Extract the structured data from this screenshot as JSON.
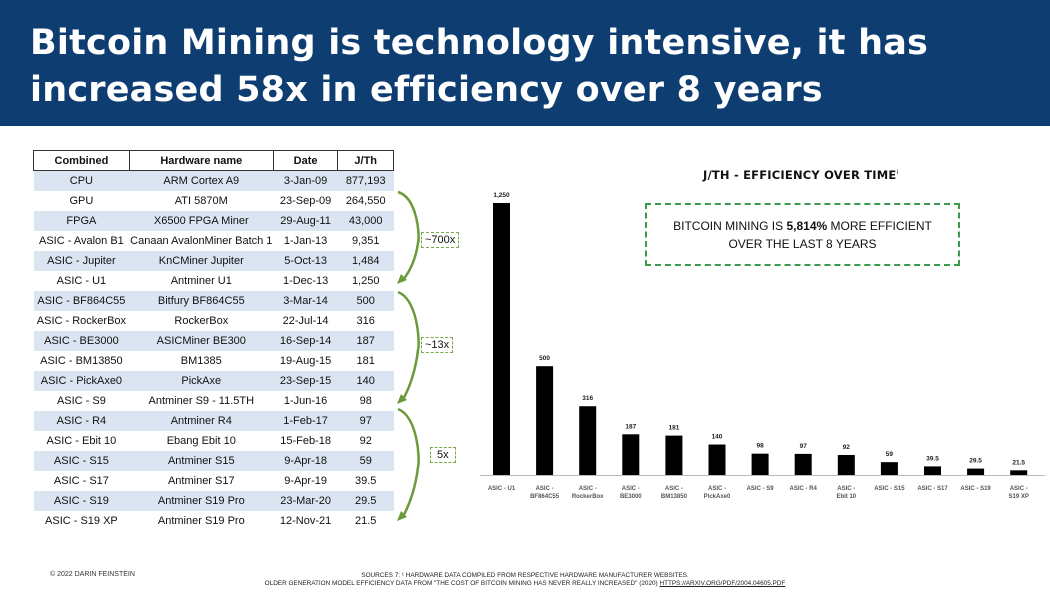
{
  "header": {
    "title_line1": "Bitcoin Mining is technology intensive, it has",
    "title_line2": "increased 58x in efficiency over 8 years"
  },
  "table": {
    "columns": [
      "Combined",
      "Hardware name",
      "Date",
      "J/Th"
    ],
    "rows": [
      [
        "CPU",
        "ARM Cortex A9",
        "3-Jan-09",
        "877,193"
      ],
      [
        "GPU",
        "ATI 5870M",
        "23-Sep-09",
        "264,550"
      ],
      [
        "FPGA",
        "X6500 FPGA Miner",
        "29-Aug-11",
        "43,000"
      ],
      [
        "ASIC - Avalon B1",
        "Canaan AvalonMiner Batch 1",
        "1-Jan-13",
        "9,351"
      ],
      [
        "ASIC - Jupiter",
        "KnCMiner Jupiter",
        "5-Oct-13",
        "1,484"
      ],
      [
        "ASIC - U1",
        "Antminer U1",
        "1-Dec-13",
        "1,250"
      ],
      [
        "ASIC - BF864C55",
        "Bitfury BF864C55",
        "3-Mar-14",
        "500"
      ],
      [
        "ASIC - RockerBox",
        "RockerBox",
        "22-Jul-14",
        "316"
      ],
      [
        "ASIC - BE3000",
        "ASICMiner BE300",
        "16-Sep-14",
        "187"
      ],
      [
        "ASIC - BM13850",
        "BM1385",
        "19-Aug-15",
        "181"
      ],
      [
        "ASIC - PickAxe0",
        "PickAxe",
        "23-Sep-15",
        "140"
      ],
      [
        "ASIC - S9",
        "Antminer S9 - 11.5TH",
        "1-Jun-16",
        "98"
      ],
      [
        "ASIC - R4",
        "Antminer R4",
        "1-Feb-17",
        "97"
      ],
      [
        "ASIC - Ebit 10",
        "Ebang Ebit 10",
        "15-Feb-18",
        "92"
      ],
      [
        "ASIC - S15",
        "Antminer S15",
        "9-Apr-18",
        "59"
      ],
      [
        "ASIC - S17",
        "Antminer S17",
        "9-Apr-19",
        "39.5"
      ],
      [
        "ASIC - S19",
        "Antminer S19 Pro",
        "23-Mar-20",
        "29.5"
      ],
      [
        "ASIC - S19 XP",
        "Antminer S19 Pro",
        "12-Nov-21",
        "21.5"
      ]
    ]
  },
  "brackets": [
    {
      "label": "~700x"
    },
    {
      "label": "~13x"
    },
    {
      "label": "5x"
    }
  ],
  "callout": {
    "text_before": "BITCOIN MINING IS ",
    "text_bold": "5,814%",
    "text_after": " MORE EFFICIENT OVER THE LAST 8 YEARS"
  },
  "chart_data": {
    "type": "bar",
    "title": "J/TH - EFFICIENCY OVER TIME",
    "title_superscript": "i",
    "categories": [
      "ASIC - U1",
      "ASIC - BF864C55",
      "ASIC - RockerBox",
      "ASIC - BE3000",
      "ASIC - BM13850",
      "ASIC - PickAxe0",
      "ASIC - S9",
      "ASIC - R4",
      "ASIC - Ebit 10",
      "ASIC - S15",
      "ASIC - S17",
      "ASIC - S19",
      "ASIC - S19 XP"
    ],
    "values": [
      1250,
      500,
      316,
      187,
      181,
      140,
      98,
      97,
      92,
      59,
      39.5,
      29.5,
      21.5
    ],
    "value_labels": [
      "1,250",
      "500",
      "316",
      "187",
      "181",
      "140",
      "98",
      "97",
      "92",
      "59",
      "39.5",
      "29.5",
      "21.5"
    ],
    "ylim": [
      0,
      1250
    ],
    "xlabel": "",
    "ylabel": "",
    "bar_color": "#000000"
  },
  "footer": {
    "copyright": "© 2022 DARIN FEINSTEIN",
    "sources_line1": "SOURCES 7: ¹ HARDWARE DATA COMPILED FROM RESPECTIVE HARDWARE MANUFACTURER WEBSITES.",
    "sources_line2": "OLDER GENERATION MODEL EFFICIENCY DATA FROM \"THE COST OF BITCOIN MINING HAS NEVER REALLY INCREASED\" (2020)",
    "sources_link": "HTTPS://ARXIV.ORG/PDF/2004.04605.PDF"
  }
}
